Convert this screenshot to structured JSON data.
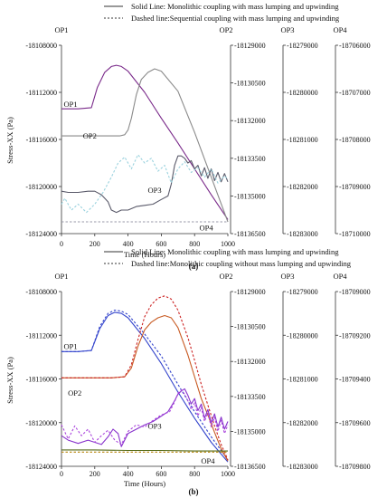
{
  "chart_data": [
    {
      "type": "line",
      "caption": "(a)",
      "legend": {
        "solid": "Solid Line: Monolithic coupling  with mass lumping and upwinding",
        "dashed": "Dashed line:Sequential coupling with mass lumping and upwinding"
      },
      "xlabel": "Time (Hours)",
      "ylabel": "Stress-XX (Pa)",
      "xlim": [
        0,
        1000
      ],
      "xticks": [
        "0",
        "200",
        "400",
        "600",
        "800",
        "1000"
      ],
      "axes": [
        {
          "title": "OP1",
          "ylim": [
            -18124000,
            -18108000
          ],
          "ticks": [
            "-18108000",
            "-18112000",
            "-18116000",
            "-18120000",
            "-18124000"
          ]
        },
        {
          "title": "OP2",
          "ylim": [
            -18136500,
            -18129000
          ],
          "ticks": [
            "-18129000",
            "-18130500",
            "-18132000",
            "-18133500",
            "-18135000",
            "-18136500"
          ]
        },
        {
          "title": "OP3",
          "ylim": [
            -18283000,
            -18279000
          ],
          "ticks": [
            "-18279000",
            "-18280000",
            "-18281000",
            "-18282000",
            "-18283000"
          ]
        },
        {
          "title": "OP4",
          "ylim": [
            -18710000,
            -18706000
          ],
          "ticks": [
            "-18706000",
            "-18707000",
            "-18708000",
            "-18709000",
            "-18710000"
          ]
        }
      ],
      "curve_labels": [
        {
          "text": "OP1",
          "x": 55,
          "y": -18113000
        },
        {
          "text": "OP2",
          "x": 170,
          "y": -18115700
        },
        {
          "text": "OP3",
          "x": 560,
          "y": -18120300
        },
        {
          "text": "OP4",
          "x": 870,
          "y": -18123500
        }
      ],
      "series": [
        {
          "axis": 0,
          "color": "#7a2a8a",
          "style": "solid",
          "x": [
            0,
            100,
            180,
            215,
            260,
            300,
            330,
            360,
            400,
            500,
            600,
            700,
            800,
            900,
            1000
          ],
          "y": [
            -18113400,
            -18113400,
            -18113300,
            -18111600,
            -18110300,
            -18109800,
            -18109700,
            -18109800,
            -18110200,
            -18112000,
            -18114200,
            -18116300,
            -18118500,
            -18120700,
            -18122800
          ]
        },
        {
          "axis": 0,
          "color": "#8a8a8a",
          "style": "solid",
          "x": [
            0,
            100,
            200,
            300,
            350,
            380,
            400,
            420,
            450,
            480,
            520,
            560,
            600,
            700,
            800,
            900,
            1000
          ],
          "y": [
            -18115700,
            -18115700,
            -18115700,
            -18115700,
            -18115700,
            -18115600,
            -18115200,
            -18114200,
            -18112200,
            -18110900,
            -18110300,
            -18110000,
            -18110200,
            -18111900,
            -18115400,
            -18119200,
            -18123000
          ]
        },
        {
          "axis": 0,
          "color": "#5a5a6a",
          "style": "solid",
          "x": [
            0,
            40,
            100,
            160,
            200,
            240,
            280,
            300,
            330,
            360,
            400,
            450,
            500,
            550,
            600,
            640,
            660,
            680,
            700,
            720,
            740,
            760,
            780,
            800,
            820,
            840,
            860,
            880,
            900,
            920,
            940,
            960,
            980,
            1000
          ],
          "y": [
            -18120400,
            -18120500,
            -18120500,
            -18120400,
            -18120400,
            -18120700,
            -18121300,
            -18122000,
            -18122200,
            -18122000,
            -18122000,
            -18121700,
            -18121600,
            -18121500,
            -18121100,
            -18120800,
            -18119800,
            -18118200,
            -18117400,
            -18117400,
            -18117600,
            -18118000,
            -18117800,
            -18118500,
            -18118200,
            -18119100,
            -18118400,
            -18119300,
            -18118500,
            -18119500,
            -18118800,
            -18119600,
            -18118900,
            -18119600
          ]
        },
        {
          "axis": 0,
          "color": "#9a9aaa",
          "style": "dashed",
          "x": [
            0,
            100,
            200,
            300,
            400,
            500,
            600,
            700,
            800,
            900,
            1000
          ],
          "y": [
            -18123000,
            -18123000,
            -18123000,
            -18123000,
            -18123000,
            -18123000,
            -18123000,
            -18123000,
            -18123000,
            -18123000,
            -18123000
          ]
        },
        {
          "axis": 0,
          "color": "#9ad2de",
          "style": "dashed",
          "x": [
            0,
            20,
            60,
            100,
            150,
            200,
            250,
            300,
            340,
            380,
            420,
            460,
            500,
            540,
            580,
            620,
            660,
            700,
            740,
            780,
            820,
            860,
            900,
            940,
            980,
            1000
          ],
          "y": [
            -18121500,
            -18121000,
            -18122000,
            -18121500,
            -18122200,
            -18121500,
            -18120500,
            -18119200,
            -18118000,
            -18117500,
            -18118500,
            -18117300,
            -18118000,
            -18117600,
            -18118700,
            -18118200,
            -18119700,
            -18118500,
            -18117900,
            -18118800,
            -18118400,
            -18119200,
            -18118500,
            -18119700,
            -18119100,
            -18119400
          ]
        }
      ]
    },
    {
      "type": "line",
      "caption": "(b)",
      "legend": {
        "solid": "Solid Line: Monolithic coupling  with mass lumping and upwinding",
        "dashed": "Dashed line:Monolithic coupling without mass lumping and upwinding"
      },
      "xlabel": "Time (Hours)",
      "ylabel": "Stress-XX (Pa)",
      "xlim": [
        0,
        1000
      ],
      "xticks": [
        "0",
        "200",
        "400",
        "600",
        "800",
        "1000"
      ],
      "axes": [
        {
          "title": "OP1",
          "ylim": [
            -18124000,
            -18108000
          ],
          "ticks": [
            "-18108000",
            "-18112000",
            "-18116000",
            "-18120000",
            "-18124000"
          ]
        },
        {
          "title": "OP2",
          "ylim": [
            -18136500,
            -18129000
          ],
          "ticks": [
            "-18129000",
            "-18130500",
            "-18132000",
            "-18133500",
            "-18135000",
            "-18136500"
          ]
        },
        {
          "title": "OP3",
          "ylim": [
            -18283000,
            -18279000
          ],
          "ticks": [
            "-18279000",
            "-18280000",
            "-18281000",
            "-18282000",
            "-18283000"
          ]
        },
        {
          "title": "OP4",
          "ylim": [
            -18709800,
            -18709000
          ],
          "ticks": [
            "-18709000",
            "-18709200",
            "-18709400",
            "-18709600",
            "-18709800"
          ]
        }
      ],
      "curve_labels": [
        {
          "text": "OP1",
          "x": 55,
          "y": -18113000
        },
        {
          "text": "OP2",
          "x": 80,
          "y": -18117300
        },
        {
          "text": "OP3",
          "x": 560,
          "y": -18120300
        },
        {
          "text": "OP4",
          "x": 880,
          "y": -18123500
        }
      ],
      "series": [
        {
          "axis": 0,
          "color": "#3344cc",
          "style": "solid",
          "x": [
            0,
            100,
            180,
            230,
            280,
            320,
            360,
            400,
            500,
            600,
            700,
            800,
            900,
            1000
          ],
          "y": [
            -18113500,
            -18113500,
            -18113400,
            -18111400,
            -18110200,
            -18109900,
            -18110000,
            -18110400,
            -18112300,
            -18114600,
            -18117200,
            -18119600,
            -18121800,
            -18123600
          ]
        },
        {
          "axis": 0,
          "color": "#3344cc",
          "style": "dashed",
          "x": [
            0,
            100,
            180,
            230,
            280,
            320,
            360,
            400,
            450,
            500,
            600,
            700,
            800,
            900,
            1000
          ],
          "y": [
            -18113500,
            -18113500,
            -18113400,
            -18111200,
            -18110000,
            -18109700,
            -18109800,
            -18110100,
            -18111000,
            -18111900,
            -18113900,
            -18116500,
            -18119000,
            -18121300,
            -18123400
          ]
        },
        {
          "axis": 0,
          "color": "#c85a22",
          "style": "solid",
          "x": [
            0,
            100,
            200,
            300,
            380,
            420,
            460,
            500,
            540,
            580,
            620,
            660,
            700,
            760,
            800,
            840,
            880,
            920,
            960,
            1000
          ],
          "y": [
            -18115900,
            -18115900,
            -18115900,
            -18115900,
            -18115800,
            -18115000,
            -18113000,
            -18111500,
            -18110800,
            -18110400,
            -18110200,
            -18110400,
            -18111300,
            -18113800,
            -18115800,
            -18117800,
            -18119300,
            -18120900,
            -18122400,
            -18123500
          ]
        },
        {
          "axis": 0,
          "color": "#cc2222",
          "style": "dashed",
          "x": [
            0,
            100,
            200,
            300,
            380,
            420,
            460,
            500,
            540,
            580,
            620,
            660,
            700,
            760,
            800,
            840,
            880,
            920,
            960,
            1000
          ],
          "y": [
            -18115900,
            -18115900,
            -18115900,
            -18115900,
            -18115800,
            -18114700,
            -18112400,
            -18110300,
            -18109200,
            -18108600,
            -18108400,
            -18108700,
            -18109700,
            -18112200,
            -18114300,
            -18116500,
            -18118400,
            -18120300,
            -18122000,
            -18123400
          ]
        },
        {
          "axis": 0,
          "color": "#8833cc",
          "style": "solid",
          "x": [
            0,
            40,
            100,
            160,
            200,
            240,
            280,
            310,
            340,
            360,
            400,
            450,
            500,
            550,
            600,
            640,
            680,
            700,
            720,
            740,
            760,
            780,
            800,
            820,
            840,
            860,
            880,
            900,
            920,
            940,
            960,
            980,
            1000
          ],
          "y": [
            -18121200,
            -18121600,
            -18121900,
            -18121600,
            -18121800,
            -18122000,
            -18121300,
            -18120600,
            -18121000,
            -18122200,
            -18121000,
            -18120600,
            -18120200,
            -18119900,
            -18119400,
            -18119000,
            -18118000,
            -18117400,
            -18117100,
            -18116900,
            -18117500,
            -18118300,
            -18117800,
            -18118900,
            -18118300,
            -18119600,
            -18118800,
            -18120000,
            -18119200,
            -18120400,
            -18119500,
            -18120600,
            -18119900
          ]
        },
        {
          "axis": 0,
          "color": "#aa44dd",
          "style": "dashed",
          "x": [
            0,
            40,
            80,
            120,
            160,
            200,
            240,
            280,
            320,
            360,
            400,
            450,
            500,
            550,
            600,
            650,
            680,
            700,
            720,
            740,
            760,
            780,
            800,
            820,
            840,
            860,
            880,
            900,
            920,
            940,
            960,
            980,
            1000
          ],
          "y": [
            -18120200,
            -18121500,
            -18120300,
            -18121200,
            -18120600,
            -18121800,
            -18121200,
            -18120700,
            -18121600,
            -18122000,
            -18120800,
            -18120200,
            -18120400,
            -18119800,
            -18119300,
            -18119000,
            -18118100,
            -18117300,
            -18117000,
            -18117400,
            -18118000,
            -18118800,
            -18118200,
            -18119400,
            -18118600,
            -18119900,
            -18119100,
            -18120400,
            -18119500,
            -18120800,
            -18119800,
            -18121000,
            -18120200
          ]
        },
        {
          "axis": 0,
          "color": "#556b1a",
          "style": "solid",
          "x": [
            0,
            200,
            400,
            600,
            800,
            1000
          ],
          "y": [
            -18122500,
            -18122500,
            -18122550,
            -18122550,
            -18122600,
            -18122600
          ]
        },
        {
          "axis": 0,
          "color": "#b8860b",
          "style": "dashed",
          "x": [
            0,
            200,
            400,
            600,
            800,
            1000
          ],
          "y": [
            -18122700,
            -18122700,
            -18122700,
            -18122700,
            -18122700,
            -18122700
          ]
        }
      ]
    }
  ]
}
